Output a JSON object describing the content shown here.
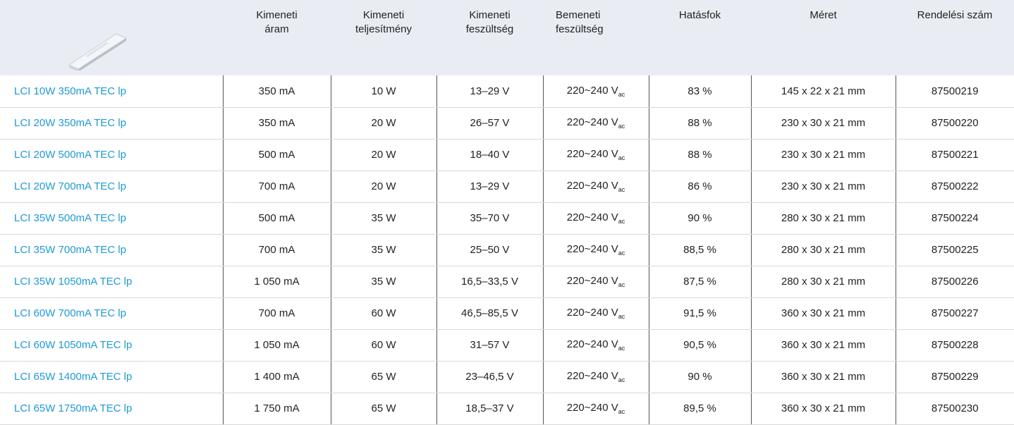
{
  "table": {
    "header": [
      "Kimeneti\náram",
      "Kimeneti\nteljesítmény",
      "Kimeneti\nfeszültség",
      "Bemeneti\nfeszültség",
      "Hatásfok",
      "Méret",
      "Rendelési szám"
    ],
    "rows": [
      [
        "LCI 10W 350mA TEC lp",
        "350 mA",
        "10 W",
        "13–29 V",
        [
          "220~240 V",
          "ac"
        ],
        "83 %",
        "145 x 22 x 21 mm",
        "87500219"
      ],
      [
        "LCI 20W 350mA TEC lp",
        "350 mA",
        "20 W",
        "26–57 V",
        [
          "220~240 V",
          "ac"
        ],
        "88 %",
        "230 x 30 x 21 mm",
        "87500220"
      ],
      [
        "LCI 20W 500mA TEC lp",
        "500 mA",
        "20 W",
        "18–40 V",
        [
          "220~240 V",
          "ac"
        ],
        "88 %",
        "230 x 30 x 21 mm",
        "87500221"
      ],
      [
        "LCI 20W 700mA TEC lp",
        "700 mA",
        "20 W",
        "13–29 V",
        [
          "220~240 V",
          "ac"
        ],
        "86 %",
        "230 x 30 x 21 mm",
        "87500222"
      ],
      [
        "LCI 35W 500mA TEC lp",
        "500 mA",
        "35 W",
        "35–70 V",
        [
          "220~240 V",
          "ac"
        ],
        "90 %",
        "280 x 30 x 21 mm",
        "87500224"
      ],
      [
        "LCI 35W 700mA TEC lp",
        "700 mA",
        "35 W",
        "25–50 V",
        [
          "220~240 V",
          "ac"
        ],
        "88,5 %",
        "280 x 30 x 21 mm",
        "87500225"
      ],
      [
        "LCI 35W 1050mA TEC lp",
        "1 050 mA",
        "35 W",
        "16,5–33,5 V",
        [
          "220~240 V",
          "ac"
        ],
        "87,5 %",
        "280 x 30 x 21 mm",
        "87500226"
      ],
      [
        "LCI 60W 700mA TEC lp",
        "700 mA",
        "60 W",
        "46,5–85,5 V",
        [
          "220~240 V",
          "ac"
        ],
        "91,5 %",
        "360 x 30 x 21 mm",
        "87500227"
      ],
      [
        "LCI 60W 1050mA TEC lp",
        "1 050 mA",
        "60 W",
        "31–57 V",
        [
          "220~240 V",
          "ac"
        ],
        "90,5 %",
        "360 x 30 x 21 mm",
        "87500228"
      ],
      [
        "LCI 65W 1400mA TEC lp",
        "1 400 mA",
        "65 W",
        "23–46,5 V",
        [
          "220~240 V",
          "ac"
        ],
        "90 %",
        "360 x 30 x 21 mm",
        "87500229"
      ],
      [
        "LCI 65W 1750mA TEC lp",
        "1 750 mA",
        "65 W",
        "18,5–37 V",
        [
          "220~240 V",
          "ac"
        ],
        "89,5 %",
        "360 x 30 x 21 mm",
        "87500230"
      ]
    ]
  }
}
